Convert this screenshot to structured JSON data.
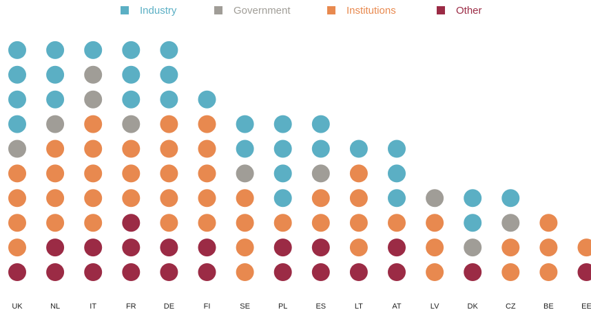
{
  "chart_data": {
    "type": "dot",
    "categories": [
      "UK",
      "NL",
      "IT",
      "FR",
      "DE",
      "FI",
      "SE",
      "PL",
      "ES",
      "LT",
      "AT",
      "LV",
      "DK",
      "CZ",
      "BE",
      "EE"
    ],
    "series": [
      {
        "name": "Other",
        "color": "#9b2b45",
        "values": [
          1,
          2,
          2,
          3,
          2,
          2,
          0,
          2,
          2,
          1,
          2,
          0,
          1,
          0,
          0,
          1
        ]
      },
      {
        "name": "Institutions",
        "color": "#e8894f",
        "values": [
          4,
          4,
          5,
          3,
          5,
          5,
          4,
          1,
          2,
          4,
          1,
          3,
          0,
          2,
          3,
          1
        ]
      },
      {
        "name": "Government",
        "color": "#a09d97",
        "values": [
          1,
          1,
          2,
          1,
          0,
          0,
          1,
          0,
          1,
          0,
          0,
          1,
          1,
          1,
          0,
          0
        ]
      },
      {
        "name": "Industry",
        "color": "#5bafc4",
        "values": [
          4,
          3,
          1,
          3,
          3,
          1,
          2,
          4,
          2,
          1,
          3,
          0,
          2,
          1,
          0,
          0
        ]
      }
    ],
    "legend_order": [
      "Industry",
      "Government",
      "Institutions",
      "Other"
    ]
  }
}
